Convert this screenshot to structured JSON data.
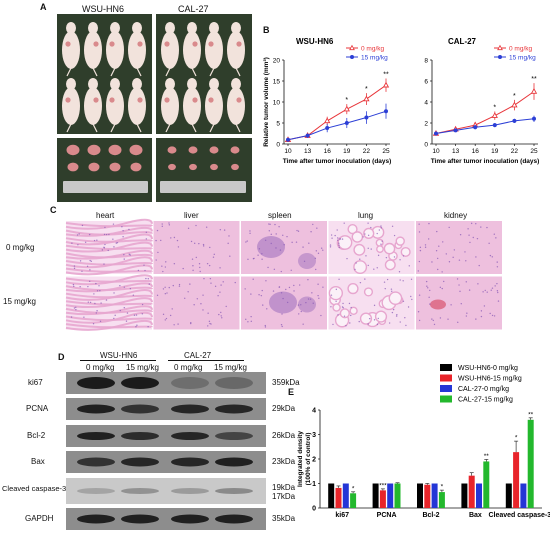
{
  "panels": {
    "a": "A",
    "b": "B",
    "c": "C",
    "d": "D",
    "e": "E"
  },
  "panel_a": {
    "groups": [
      "WSU-HN6",
      "CAL-27"
    ],
    "colors": {
      "bg": "#2f3e2b",
      "skin": "#f2e3dc",
      "tumor": "#d98a8c",
      "ruler": "#c8c8c8"
    }
  },
  "chart_data": [
    {
      "type": "line",
      "title": "WSU-HN6",
      "xlabel": "Time after tumor inoculation (days)",
      "ylabel": "Relative tumor volume (mm³)",
      "x": [
        10,
        13,
        16,
        19,
        22,
        25
      ],
      "ylim": [
        0,
        20
      ],
      "yticks": [
        0,
        5,
        10,
        15,
        20
      ],
      "legend": "top-right",
      "series": [
        {
          "name": "0 mg/kg",
          "color": "#e8353a",
          "marker": "triangle-open",
          "values": [
            1,
            2,
            5.5,
            8.3,
            10.7,
            14
          ],
          "errors": [
            0.3,
            0.5,
            1.0,
            1.2,
            1.4,
            1.6
          ]
        },
        {
          "name": "15 mg/kg",
          "color": "#2c3fd6",
          "marker": "circle",
          "values": [
            1,
            2,
            3.8,
            5.0,
            6.3,
            7.8
          ],
          "errors": [
            0.3,
            0.5,
            1.0,
            1.2,
            1.5,
            1.8
          ]
        }
      ],
      "annotations": [
        {
          "x": 19,
          "text": "*"
        },
        {
          "x": 22,
          "text": "*"
        },
        {
          "x": 25,
          "text": "**"
        }
      ]
    },
    {
      "type": "line",
      "title": "CAL-27",
      "xlabel": "Time after tumor inoculation (days)",
      "ylabel": "",
      "x": [
        10,
        13,
        16,
        19,
        22,
        25
      ],
      "ylim": [
        0,
        8
      ],
      "yticks": [
        0,
        2,
        4,
        6,
        8
      ],
      "legend": "top-right",
      "series": [
        {
          "name": "0 mg/kg",
          "color": "#e8353a",
          "marker": "triangle-open",
          "values": [
            1,
            1.4,
            1.8,
            2.7,
            3.7,
            5.0
          ],
          "errors": [
            0.1,
            0.2,
            0.3,
            0.4,
            0.5,
            0.8
          ]
        },
        {
          "name": "15 mg/kg",
          "color": "#2c3fd6",
          "marker": "circle",
          "values": [
            1,
            1.3,
            1.6,
            1.8,
            2.2,
            2.4
          ],
          "errors": [
            0.1,
            0.1,
            0.2,
            0.2,
            0.2,
            0.3
          ]
        }
      ],
      "annotations": [
        {
          "x": 19,
          "text": "*"
        },
        {
          "x": 22,
          "text": "*"
        },
        {
          "x": 25,
          "text": "**"
        }
      ]
    },
    {
      "type": "bar",
      "title": "",
      "xlabel": "",
      "ylabel": "Integrated density (100% of control)",
      "categories": [
        "ki67",
        "PCNA",
        "Bcl-2",
        "Bax",
        "Cleaved caspase-3"
      ],
      "ylim": [
        0,
        4
      ],
      "yticks": [
        0,
        1,
        2,
        3,
        4
      ],
      "legend": "top-right",
      "series": [
        {
          "name": "WSU-HN6-0 mg/kg",
          "color": "#000000",
          "values": [
            1,
            1,
            1,
            1,
            1
          ],
          "errors": [
            0,
            0,
            0,
            0,
            0
          ],
          "stars": [
            "",
            "",
            "",
            "",
            ""
          ]
        },
        {
          "name": "WSU-HN6-15 mg/kg",
          "color": "#e8242a",
          "values": [
            0.82,
            0.72,
            0.95,
            1.32,
            2.28
          ],
          "errors": [
            0.08,
            0.06,
            0.05,
            0.12,
            0.45
          ],
          "stars": [
            "",
            "***",
            "",
            "",
            "*"
          ]
        },
        {
          "name": "CAL-27-0 mg/kg",
          "color": "#2436d6",
          "values": [
            1,
            1,
            1,
            1,
            1
          ],
          "errors": [
            0,
            0,
            0,
            0,
            0
          ],
          "stars": [
            "",
            "",
            "",
            "",
            ""
          ]
        },
        {
          "name": "CAL-27-15 mg/kg",
          "color": "#23b82d",
          "values": [
            0.6,
            1.0,
            0.65,
            1.9,
            3.6
          ],
          "errors": [
            0.06,
            0.03,
            0.08,
            0.08,
            0.08
          ],
          "stars": [
            "*",
            "",
            "*",
            "**",
            "**"
          ]
        }
      ]
    }
  ],
  "panel_c": {
    "tissues": [
      "heart",
      "liver",
      "spleen",
      "lung",
      "kidney"
    ],
    "doses": [
      "0 mg/kg",
      "15 mg/kg"
    ],
    "colors": {
      "tissue": "#e7a6cf",
      "nuclei": "#8a5bb5",
      "bg": "#f7dff0"
    }
  },
  "panel_d": {
    "groups": [
      "WSU-HN6",
      "CAL-27"
    ],
    "doses": [
      "0 mg/kg",
      "15 mg/kg",
      "0 mg/kg",
      "15 mg/kg"
    ],
    "proteins": [
      {
        "name": "ki67",
        "size": "359kDa"
      },
      {
        "name": "PCNA",
        "size": "29kDa"
      },
      {
        "name": "Bcl-2",
        "size": "26kDa"
      },
      {
        "name": "Bax",
        "size": "23kDa"
      },
      {
        "name": "Cleaved caspase-3",
        "size": "19kDa",
        "size2": "17kDa"
      },
      {
        "name": "GAPDH",
        "size": "35kDa"
      }
    ]
  }
}
